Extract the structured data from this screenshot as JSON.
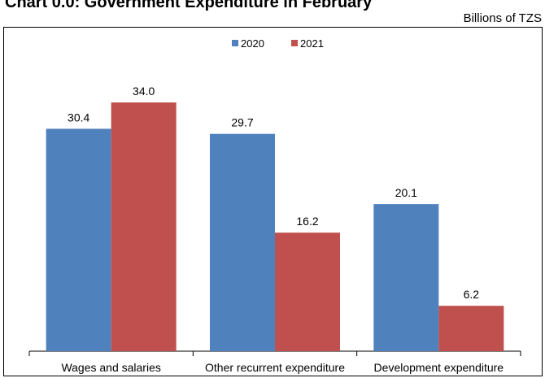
{
  "chart_data": {
    "type": "bar",
    "title": "Chart 0.0: Government Expenditure in February",
    "unit_label": "Billions of TZS",
    "categories": [
      "Wages and salaries",
      "Other recurrent expenditure",
      "Development expenditure"
    ],
    "series": [
      {
        "name": "2020",
        "values": [
          30.4,
          29.7,
          20.1
        ],
        "labels": [
          "30.4",
          "29.7",
          "20.1"
        ],
        "color": "#4f81bd"
      },
      {
        "name": "2021",
        "values": [
          34.0,
          16.2,
          6.2
        ],
        "labels": [
          "34.0",
          "16.2",
          "6.2"
        ],
        "color": "#c0504d"
      }
    ],
    "ylim": [
      0,
      40
    ],
    "grid": false,
    "legend_position": "top-center"
  }
}
